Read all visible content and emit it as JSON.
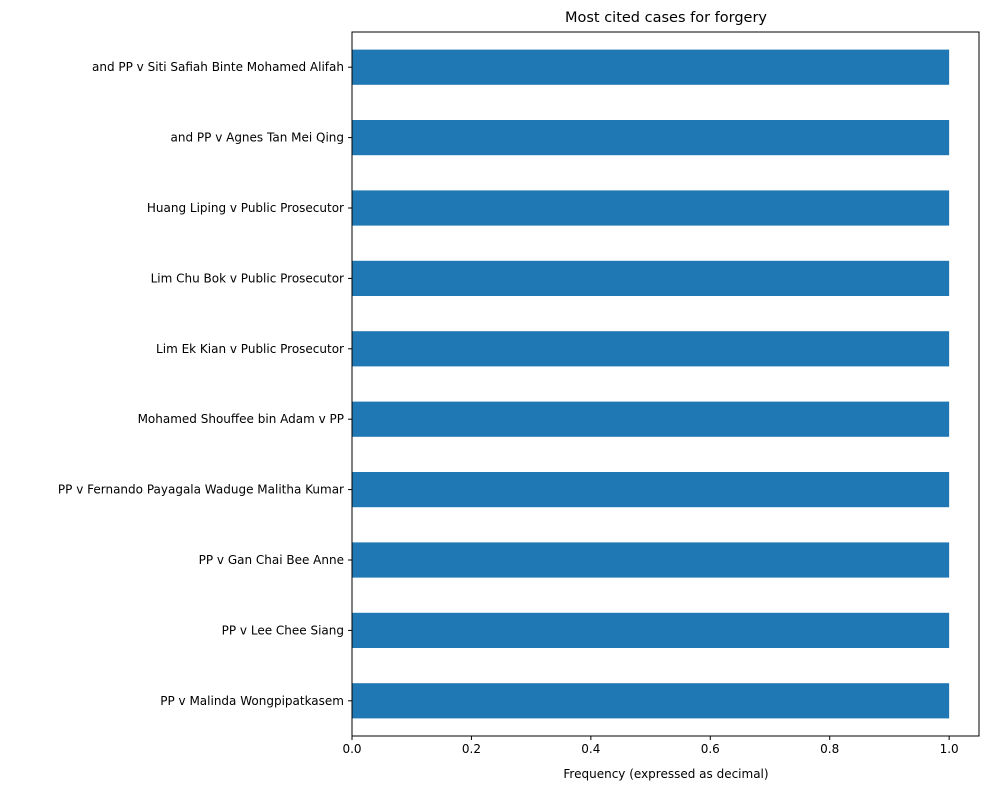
{
  "chart_data": {
    "type": "bar",
    "orientation": "horizontal",
    "title": "Most cited cases for forgery",
    "xlabel": "Frequency (expressed as decimal)",
    "ylabel": "",
    "xlim": [
      0,
      1.05
    ],
    "xticks": [
      0.0,
      0.2,
      0.4,
      0.6,
      0.8,
      1.0
    ],
    "xtick_labels": [
      "0.0",
      "0.2",
      "0.4",
      "0.6",
      "0.8",
      "1.0"
    ],
    "grid": false,
    "bar_color": "#1f77b4",
    "categories": [
      "and PP v Siti Safiah Binte Mohamed Alifah",
      "and PP v Agnes Tan Mei Qing",
      "Huang Liping v Public Prosecutor",
      "Lim Chu Bok v Public Prosecutor",
      "Lim Ek Kian v Public Prosecutor",
      "Mohamed Shouffee bin Adam v PP",
      "PP v Fernando Payagala Waduge Malitha Kumar",
      "PP v Gan Chai Bee Anne",
      "PP v Lee Chee Siang",
      "PP v Malinda Wongpipatkasem"
    ],
    "values": [
      1.0,
      1.0,
      1.0,
      1.0,
      1.0,
      1.0,
      1.0,
      1.0,
      1.0,
      1.0
    ]
  }
}
